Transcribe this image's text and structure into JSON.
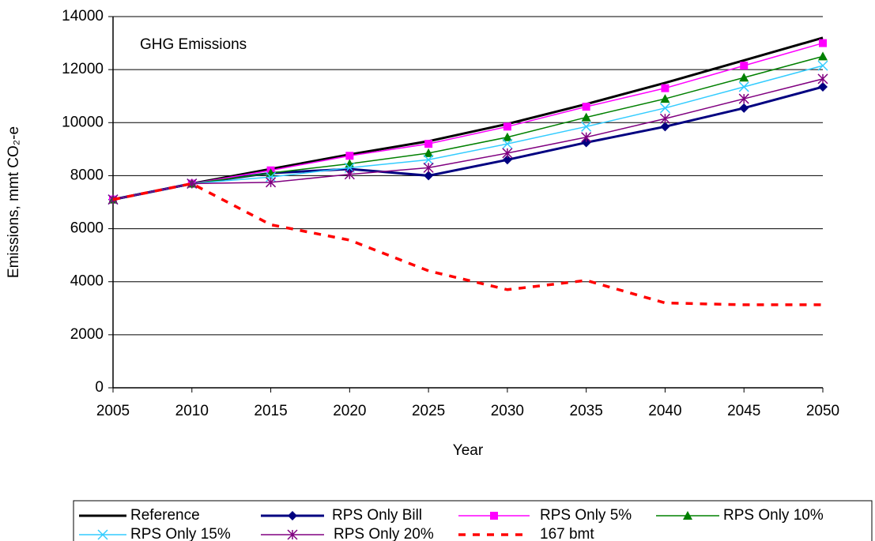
{
  "chart_data": {
    "type": "line",
    "annotation": "GHG Emissions",
    "x_label": "Year",
    "y_label": "Emissions, mmt CO₂-e",
    "x": [
      2005,
      2010,
      2015,
      2020,
      2025,
      2030,
      2035,
      2040,
      2045,
      2050
    ],
    "xlim": [
      2005,
      2050
    ],
    "xticks": [
      2005,
      2010,
      2015,
      2020,
      2025,
      2030,
      2035,
      2040,
      2045,
      2050
    ],
    "ylim": [
      0,
      14000
    ],
    "yticks": [
      0,
      2000,
      4000,
      6000,
      8000,
      10000,
      12000,
      14000
    ],
    "grid": true,
    "legend": "bottom",
    "series": [
      {
        "name": "Reference",
        "color": "#000000",
        "line_width": 3,
        "values": [
          7100,
          7700,
          8250,
          8800,
          9300,
          9950,
          10700,
          11500,
          12350,
          13200
        ]
      },
      {
        "name": "RPS Only Bill",
        "color": "#000080",
        "line_width": 3,
        "marker": "diamond",
        "values": [
          7100,
          7700,
          8100,
          8250,
          8000,
          8600,
          9250,
          9850,
          10550,
          11350
        ]
      },
      {
        "name": "RPS Only 5%",
        "color": "#ff00ff",
        "line_width": 1.5,
        "marker": "square",
        "values": [
          7100,
          7700,
          8200,
          8750,
          9200,
          9850,
          10600,
          11300,
          12150,
          13000
        ]
      },
      {
        "name": "RPS Only 10%",
        "color": "#008000",
        "line_width": 1.5,
        "marker": "triangle",
        "values": [
          7100,
          7700,
          8100,
          8450,
          8850,
          9450,
          10200,
          10900,
          11700,
          12500
        ]
      },
      {
        "name": "RPS Only 15%",
        "color": "#33ccff",
        "line_width": 1.5,
        "marker": "x",
        "values": [
          7100,
          7700,
          7950,
          8300,
          8600,
          9200,
          9850,
          10550,
          11350,
          12150
        ]
      },
      {
        "name": "RPS Only 20%",
        "color": "#800080",
        "line_width": 1.5,
        "marker": "star",
        "values": [
          7100,
          7700,
          7750,
          8050,
          8300,
          8850,
          9450,
          10150,
          10900,
          11650
        ]
      },
      {
        "name": "167 bmt",
        "color": "#ff0000",
        "line_width": 3.5,
        "dashed": true,
        "values": [
          7100,
          7700,
          6150,
          5570,
          4410,
          3700,
          4050,
          3200,
          3130,
          3130
        ]
      }
    ]
  }
}
